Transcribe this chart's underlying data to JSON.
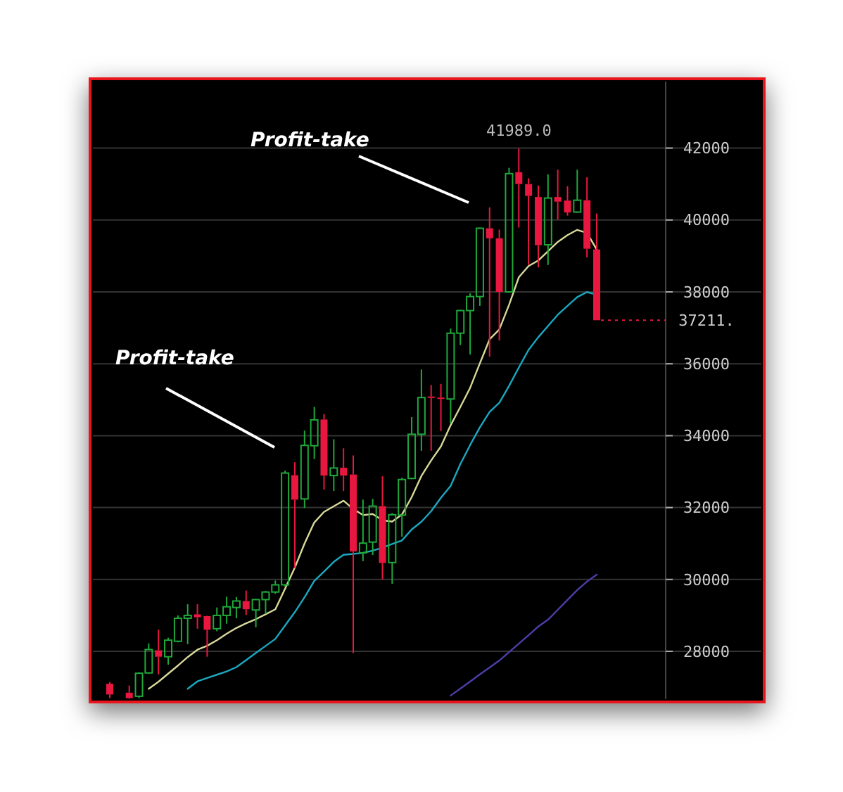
{
  "chart_data": {
    "type": "candlestick",
    "categories": [
      null,
      null,
      null,
      null,
      null,
      null,
      null,
      null,
      null,
      null,
      null,
      null,
      null,
      null,
      null,
      null,
      null,
      null,
      null,
      null,
      null,
      null,
      null,
      null,
      null,
      null,
      null,
      null,
      null,
      null,
      null,
      null,
      null,
      null,
      null,
      null,
      null,
      null,
      null,
      null,
      null,
      null,
      null,
      null,
      null,
      null,
      null,
      null,
      null,
      null,
      null
    ],
    "ohlc": [
      [
        27100,
        27150,
        26700,
        26800
      ],
      null,
      [
        26850,
        27050,
        26680,
        26700
      ],
      [
        26750,
        27420,
        26700,
        27390
      ],
      [
        27400,
        28220,
        27380,
        28050
      ],
      [
        28030,
        28600,
        27360,
        27850
      ],
      [
        27850,
        28380,
        27630,
        28310
      ],
      [
        28280,
        29000,
        28250,
        28920
      ],
      [
        28920,
        29310,
        28200,
        29000
      ],
      [
        29030,
        29310,
        28630,
        28950
      ],
      [
        28980,
        28990,
        27850,
        28600
      ],
      [
        28630,
        29220,
        28560,
        29000
      ],
      [
        29000,
        29520,
        28770,
        29240
      ],
      [
        29220,
        29510,
        28920,
        29400
      ],
      [
        29400,
        29690,
        29010,
        29170
      ],
      [
        29150,
        29460,
        28670,
        29440
      ],
      [
        29440,
        29680,
        29040,
        29650
      ],
      [
        29650,
        29970,
        29600,
        29850
      ],
      [
        29850,
        33030,
        29800,
        32960
      ],
      [
        32900,
        33260,
        30320,
        32220
      ],
      [
        32240,
        34140,
        31990,
        33730
      ],
      [
        33720,
        34800,
        33350,
        34440
      ],
      [
        34450,
        34600,
        32500,
        32890
      ],
      [
        32890,
        33900,
        32460,
        33100
      ],
      [
        33110,
        33650,
        32460,
        32890
      ],
      [
        32920,
        33450,
        27950,
        30780
      ],
      [
        30740,
        32220,
        30510,
        31010
      ],
      [
        31040,
        32240,
        30680,
        32040
      ],
      [
        32040,
        32870,
        30000,
        30460
      ],
      [
        30470,
        31850,
        29880,
        31800
      ],
      [
        31790,
        32830,
        31190,
        32780
      ],
      [
        32810,
        34520,
        32790,
        34040
      ],
      [
        34040,
        35840,
        33580,
        35060
      ],
      [
        35090,
        35410,
        33580,
        35050
      ],
      [
        35060,
        35440,
        34130,
        35020
      ],
      [
        35020,
        36980,
        34340,
        36850
      ],
      [
        36850,
        37500,
        36520,
        37480
      ],
      [
        37480,
        37960,
        36260,
        37870
      ],
      [
        37870,
        39790,
        37610,
        39770
      ],
      [
        39770,
        40350,
        36200,
        39490
      ],
      [
        39490,
        39730,
        36650,
        38000
      ],
      [
        38000,
        41450,
        37980,
        41290
      ],
      [
        41330,
        41989,
        39790,
        41000
      ],
      [
        41000,
        41160,
        38750,
        40670
      ],
      [
        40640,
        40960,
        38680,
        39300
      ],
      [
        39310,
        41270,
        38750,
        40610
      ],
      [
        40640,
        41400,
        40010,
        40510
      ],
      [
        40540,
        40940,
        40120,
        40210
      ],
      [
        40220,
        41400,
        40200,
        40550
      ],
      [
        40550,
        41190,
        38960,
        39200
      ],
      [
        39180,
        40180,
        37211,
        37211
      ]
    ],
    "colors": [
      "#e8173f",
      null,
      "#e8173f",
      "#1fa83a",
      "#1fa83a",
      "#e8173f",
      "#1fa83a",
      "#1fa83a",
      "#1fa83a",
      "#e8173f",
      "#e8173f",
      "#1fa83a",
      "#1fa83a",
      "#1fa83a",
      "#e8173f",
      "#1fa83a",
      "#1fa83a",
      "#1fa83a",
      "#1fa83a",
      "#e8173f",
      "#1fa83a",
      "#1fa83a",
      "#e8173f",
      "#1fa83a",
      "#e8173f",
      "#e8173f",
      "#1fa83a",
      "#1fa83a",
      "#e8173f",
      "#1fa83a",
      "#1fa83a",
      "#1fa83a",
      "#1fa83a",
      "#e8173f",
      "#e8173f",
      "#1fa83a",
      "#1fa83a",
      "#1fa83a",
      "#1fa83a",
      "#e8173f",
      "#e8173f",
      "#1fa83a",
      "#e8173f",
      "#e8173f",
      "#e8173f",
      "#1fa83a",
      "#e8173f",
      "#e8173f",
      "#1fa83a",
      "#e8173f",
      "#e8173f"
    ],
    "series": [
      {
        "type": "line",
        "color": "#d8d89a",
        "values": [
          null,
          null,
          null,
          null,
          26960,
          27155,
          27380,
          27605,
          27840,
          28045,
          28155,
          28310,
          28490,
          28650,
          28780,
          28895,
          29030,
          29170,
          29740,
          30330,
          31000,
          31585,
          31880,
          32035,
          32190,
          31960,
          31790,
          31820,
          31645,
          31610,
          31805,
          32290,
          32880,
          33310,
          33700,
          34290,
          34800,
          35330,
          36010,
          36680,
          36955,
          37640,
          38405,
          38720,
          38875,
          39130,
          39390,
          39580,
          39725,
          39640,
          39180
        ]
      },
      {
        "type": "line",
        "color": "#1aa8c0",
        "values": [
          null,
          null,
          null,
          null,
          null,
          null,
          null,
          null,
          26960,
          27165,
          27260,
          27350,
          27440,
          27560,
          27755,
          27955,
          28150,
          28345,
          28720,
          29090,
          29505,
          29960,
          30220,
          30490,
          30685,
          30710,
          30740,
          30800,
          30885,
          30985,
          31085,
          31390,
          31605,
          31900,
          32270,
          32605,
          33210,
          33740,
          34230,
          34660,
          34915,
          35385,
          35895,
          36385,
          36740,
          37050,
          37365,
          37610,
          37855,
          37995,
          37925
        ]
      },
      {
        "type": "line",
        "color": "#4b3fa8",
        "values": [
          null,
          null,
          null,
          null,
          null,
          null,
          null,
          null,
          null,
          null,
          null,
          null,
          null,
          null,
          null,
          null,
          null,
          null,
          null,
          null,
          null,
          null,
          null,
          null,
          null,
          null,
          null,
          null,
          null,
          null,
          null,
          null,
          null,
          null,
          null,
          26770,
          26965,
          27160,
          27360,
          27550,
          27745,
          27980,
          28215,
          28450,
          28690,
          28880,
          29155,
          29430,
          29705,
          29940,
          30135
        ]
      }
    ],
    "ylim": [
      26670,
      43850
    ],
    "yticks": [
      28000,
      30000,
      32000,
      34000,
      36000,
      38000,
      40000,
      42000
    ],
    "grid": "y",
    "tick_labels": "y",
    "line_style": "solid",
    "ref_lines": [
      {
        "axis": "y",
        "value": 37211,
        "label": "37211.",
        "color": "#e8173f",
        "line_style": "dotted"
      }
    ],
    "annotations": [
      "Profit-take",
      "Profit-take",
      {
        "text": "41989.0",
        "y": 41989
      }
    ]
  }
}
